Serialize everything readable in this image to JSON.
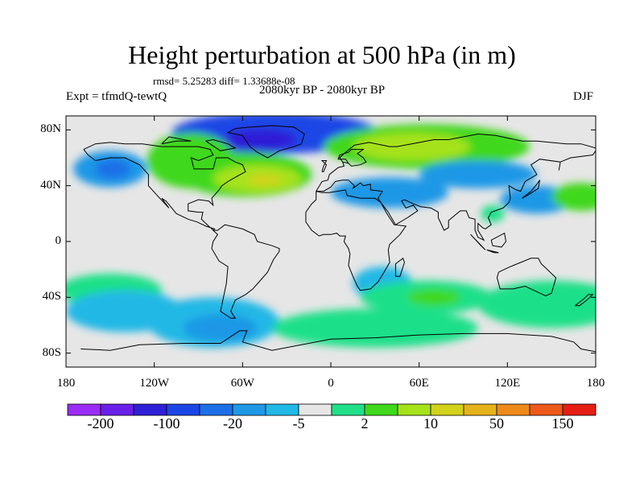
{
  "title": "Height perturbation at 500 hPa (in m)",
  "stats": "rmsd= 5.25283 diff= 1.33688e-08",
  "left_string": "Expt = tfmdQ-tewtQ",
  "center_string": "2080kyr BP - 2080kyr BP",
  "right_string": "DJF",
  "map": {
    "projection": "cylindrical-equidistant",
    "lon_range": [
      -180,
      180
    ],
    "lat_range": [
      -90,
      90
    ],
    "lat_labels": [
      "80N",
      "40N",
      "0",
      "40S",
      "80S"
    ],
    "lat_values": [
      80,
      40,
      0,
      -40,
      -80
    ],
    "lon_labels": [
      "180",
      "120W",
      "60W",
      "0",
      "60E",
      "120E",
      "180"
    ],
    "lon_values": [
      -180,
      -120,
      -60,
      0,
      60,
      120,
      180
    ]
  },
  "colorbar": {
    "colors": [
      "#9b2cf5",
      "#6a20e8",
      "#2f1fd7",
      "#1b46e6",
      "#1d6fe8",
      "#1f98e6",
      "#20b8e6",
      "#e6e6e6",
      "#1fe089",
      "#3fd81a",
      "#a6e21a",
      "#d2d21a",
      "#e6b21a",
      "#ee8a1a",
      "#ee5a1a",
      "#e61e14"
    ],
    "labels": [
      "-200",
      "-100",
      "-20",
      "-5",
      "2",
      "10",
      "50",
      "150"
    ],
    "label_boundary_index": [
      1,
      3,
      5,
      7,
      9,
      11,
      13,
      15
    ]
  },
  "anomaly_regions": [
    {
      "lon": -38,
      "lat": 78,
      "rx": 70,
      "ry": 15,
      "level": 3
    },
    {
      "lon": -48,
      "lat": 73,
      "rx": 25,
      "ry": 8,
      "level": 2
    },
    {
      "lon": -150,
      "lat": 52,
      "rx": 25,
      "ry": 13,
      "level": 5
    },
    {
      "lon": -148,
      "lat": 52,
      "rx": 12,
      "ry": 7,
      "level": 4
    },
    {
      "lon": -95,
      "lat": 58,
      "rx": 30,
      "ry": 20,
      "level": 9
    },
    {
      "lon": -58,
      "lat": 48,
      "rx": 45,
      "ry": 16,
      "level": 9
    },
    {
      "lon": -50,
      "lat": 45,
      "rx": 30,
      "ry": 10,
      "level": 10
    },
    {
      "lon": -45,
      "lat": 44,
      "rx": 12,
      "ry": 4,
      "level": 11
    },
    {
      "lon": 65,
      "lat": 68,
      "rx": 70,
      "ry": 16,
      "level": 9
    },
    {
      "lon": 55,
      "lat": 68,
      "rx": 40,
      "ry": 10,
      "level": 10
    },
    {
      "lon": 40,
      "lat": 35,
      "rx": 40,
      "ry": 11,
      "level": 5
    },
    {
      "lon": 100,
      "lat": 48,
      "rx": 40,
      "ry": 10,
      "level": 5
    },
    {
      "lon": 140,
      "lat": 30,
      "rx": 25,
      "ry": 10,
      "level": 5
    },
    {
      "lon": 170,
      "lat": 32,
      "rx": 20,
      "ry": 10,
      "level": 9
    },
    {
      "lon": 110,
      "lat": 20,
      "rx": 8,
      "ry": 6,
      "level": 8
    },
    {
      "lon": 35,
      "lat": -30,
      "rx": 20,
      "ry": 12,
      "level": 6
    },
    {
      "lon": 65,
      "lat": -40,
      "rx": 45,
      "ry": 12,
      "level": 8
    },
    {
      "lon": 70,
      "lat": -40,
      "rx": 18,
      "ry": 6,
      "level": 9
    },
    {
      "lon": 150,
      "lat": -45,
      "rx": 50,
      "ry": 17,
      "level": 8
    },
    {
      "lon": -150,
      "lat": -35,
      "rx": 35,
      "ry": 12,
      "level": 8
    },
    {
      "lon": -140,
      "lat": -50,
      "rx": 40,
      "ry": 15,
      "level": 6
    },
    {
      "lon": -80,
      "lat": -58,
      "rx": 45,
      "ry": 18,
      "level": 6
    },
    {
      "lon": -75,
      "lat": -62,
      "rx": 25,
      "ry": 10,
      "level": 5
    },
    {
      "lon": 30,
      "lat": -62,
      "rx": 70,
      "ry": 14,
      "level": 8
    }
  ],
  "coastlines": [
    [
      [
        -168,
        66
      ],
      [
        -160,
        70
      ],
      [
        -150,
        71
      ],
      [
        -140,
        70
      ],
      [
        -128,
        70
      ],
      [
        -115,
        68
      ],
      [
        -100,
        68
      ],
      [
        -90,
        68
      ],
      [
        -82,
        66
      ],
      [
        -80,
        62
      ],
      [
        -90,
        58
      ],
      [
        -95,
        60
      ],
      [
        -93,
        52
      ],
      [
        -80,
        52
      ],
      [
        -78,
        60
      ],
      [
        -70,
        60
      ],
      [
        -65,
        57
      ],
      [
        -60,
        55
      ],
      [
        -58,
        50
      ],
      [
        -65,
        46
      ],
      [
        -70,
        43
      ],
      [
        -74,
        40
      ],
      [
        -76,
        37
      ],
      [
        -81,
        31
      ],
      [
        -80,
        26
      ],
      [
        -83,
        29
      ],
      [
        -90,
        30
      ],
      [
        -97,
        27
      ],
      [
        -97,
        22
      ],
      [
        -90,
        21
      ],
      [
        -87,
        21
      ],
      [
        -88,
        16
      ],
      [
        -84,
        12
      ],
      [
        -80,
        8
      ],
      [
        -79,
        9
      ],
      [
        -85,
        11
      ],
      [
        -91,
        14
      ],
      [
        -97,
        16
      ],
      [
        -105,
        20
      ],
      [
        -112,
        29
      ],
      [
        -115,
        31
      ],
      [
        -110,
        24
      ],
      [
        -118,
        33
      ],
      [
        -124,
        40
      ],
      [
        -124,
        48
      ],
      [
        -130,
        55
      ],
      [
        -140,
        60
      ],
      [
        -150,
        60
      ],
      [
        -160,
        58
      ],
      [
        -165,
        62
      ],
      [
        -168,
        66
      ]
    ],
    [
      [
        -80,
        8
      ],
      [
        -77,
        5
      ],
      [
        -80,
        0
      ],
      [
        -81,
        -5
      ],
      [
        -76,
        -14
      ],
      [
        -70,
        -18
      ],
      [
        -71,
        -30
      ],
      [
        -73,
        -40
      ],
      [
        -75,
        -50
      ],
      [
        -68,
        -55
      ],
      [
        -65,
        -55
      ],
      [
        -68,
        -50
      ],
      [
        -65,
        -42
      ],
      [
        -58,
        -38
      ],
      [
        -53,
        -34
      ],
      [
        -48,
        -28
      ],
      [
        -43,
        -22
      ],
      [
        -39,
        -13
      ],
      [
        -35,
        -7
      ],
      [
        -35,
        -5
      ],
      [
        -40,
        -3
      ],
      [
        -50,
        0
      ],
      [
        -52,
        5
      ],
      [
        -60,
        9
      ],
      [
        -72,
        12
      ],
      [
        -77,
        8
      ],
      [
        -80,
        8
      ]
    ],
    [
      [
        -10,
        36
      ],
      [
        -6,
        43
      ],
      [
        -2,
        44
      ],
      [
        -1,
        48
      ],
      [
        5,
        53
      ],
      [
        9,
        54
      ],
      [
        8,
        57
      ],
      [
        12,
        56
      ],
      [
        14,
        54
      ],
      [
        20,
        55
      ],
      [
        24,
        57
      ],
      [
        22,
        60
      ],
      [
        18,
        63
      ],
      [
        22,
        66
      ],
      [
        14,
        66
      ],
      [
        12,
        64
      ],
      [
        6,
        62
      ],
      [
        5,
        59
      ],
      [
        10,
        59
      ],
      [
        12,
        56
      ],
      [
        8,
        57
      ],
      [
        6,
        60
      ],
      [
        10,
        64
      ],
      [
        16,
        69
      ],
      [
        26,
        71
      ],
      [
        40,
        68
      ],
      [
        45,
        68
      ],
      [
        55,
        70
      ],
      [
        70,
        73
      ],
      [
        80,
        73
      ],
      [
        100,
        77
      ],
      [
        112,
        76
      ],
      [
        130,
        72
      ],
      [
        140,
        72
      ],
      [
        160,
        70
      ],
      [
        170,
        70
      ],
      [
        180,
        67
      ],
      [
        180,
        65
      ],
      [
        178,
        62
      ],
      [
        163,
        60
      ],
      [
        156,
        57
      ],
      [
        155,
        51
      ],
      [
        156,
        57
      ],
      [
        142,
        59
      ],
      [
        136,
        55
      ],
      [
        140,
        48
      ],
      [
        132,
        43
      ],
      [
        129,
        36
      ],
      [
        126,
        37
      ],
      [
        121,
        40
      ],
      [
        122,
        31
      ],
      [
        121,
        28
      ],
      [
        117,
        24
      ],
      [
        109,
        21
      ],
      [
        107,
        17
      ],
      [
        109,
        12
      ],
      [
        105,
        9
      ],
      [
        103,
        10
      ],
      [
        100,
        13
      ],
      [
        100,
        8
      ],
      [
        104,
        1
      ],
      [
        100,
        3
      ],
      [
        98,
        8
      ],
      [
        98,
        16
      ],
      [
        94,
        17
      ],
      [
        92,
        22
      ],
      [
        88,
        22
      ],
      [
        80,
        15
      ],
      [
        80,
        10
      ],
      [
        77,
        8
      ],
      [
        73,
        17
      ],
      [
        73,
        21
      ],
      [
        68,
        24
      ],
      [
        61,
        25
      ],
      [
        56,
        27
      ],
      [
        50,
        30
      ],
      [
        48,
        29
      ],
      [
        51,
        24
      ],
      [
        56,
        26
      ],
      [
        59,
        22
      ],
      [
        52,
        17
      ],
      [
        44,
        12
      ],
      [
        39,
        21
      ],
      [
        34,
        28
      ],
      [
        32,
        31
      ],
      [
        35,
        36
      ],
      [
        27,
        37
      ],
      [
        27,
        41
      ],
      [
        22,
        40
      ],
      [
        20,
        42
      ],
      [
        15,
        38
      ],
      [
        16,
        40
      ],
      [
        12,
        44
      ],
      [
        8,
        44
      ],
      [
        3,
        43
      ],
      [
        0,
        39
      ],
      [
        -5,
        36
      ],
      [
        -10,
        36
      ]
    ],
    [
      [
        -10,
        36
      ],
      [
        -6,
        35
      ],
      [
        -1,
        35
      ],
      [
        10,
        37
      ],
      [
        11,
        33
      ],
      [
        20,
        31
      ],
      [
        30,
        31
      ],
      [
        34,
        28
      ],
      [
        38,
        20
      ],
      [
        43,
        12
      ],
      [
        51,
        11
      ],
      [
        47,
        5
      ],
      [
        40,
        -2
      ],
      [
        39,
        -6
      ],
      [
        40,
        -15
      ],
      [
        35,
        -24
      ],
      [
        32,
        -29
      ],
      [
        27,
        -34
      ],
      [
        20,
        -35
      ],
      [
        18,
        -32
      ],
      [
        15,
        -25
      ],
      [
        12,
        -17
      ],
      [
        13,
        -9
      ],
      [
        12,
        -5
      ],
      [
        9,
        0
      ],
      [
        10,
        4
      ],
      [
        6,
        4
      ],
      [
        4,
        6
      ],
      [
        0,
        5
      ],
      [
        -5,
        5
      ],
      [
        -8,
        4
      ],
      [
        -13,
        8
      ],
      [
        -17,
        14
      ],
      [
        -17,
        21
      ],
      [
        -13,
        27
      ],
      [
        -10,
        30
      ],
      [
        -10,
        36
      ]
    ],
    [
      [
        44,
        -25
      ],
      [
        47,
        -25
      ],
      [
        50,
        -15
      ],
      [
        49,
        -12
      ],
      [
        44,
        -16
      ],
      [
        44,
        -25
      ]
    ],
    [
      [
        114,
        -22
      ],
      [
        122,
        -18
      ],
      [
        129,
        -15
      ],
      [
        136,
        -12
      ],
      [
        141,
        -12
      ],
      [
        143,
        -16
      ],
      [
        146,
        -19
      ],
      [
        153,
        -26
      ],
      [
        150,
        -37
      ],
      [
        146,
        -39
      ],
      [
        138,
        -35
      ],
      [
        132,
        -32
      ],
      [
        124,
        -34
      ],
      [
        115,
        -34
      ],
      [
        113,
        -26
      ],
      [
        114,
        -22
      ]
    ],
    [
      [
        -55,
        82
      ],
      [
        -40,
        83
      ],
      [
        -25,
        82
      ],
      [
        -18,
        77
      ],
      [
        -20,
        70
      ],
      [
        -25,
        68
      ],
      [
        -35,
        65
      ],
      [
        -43,
        60
      ],
      [
        -50,
        64
      ],
      [
        -55,
        68
      ],
      [
        -60,
        76
      ],
      [
        -70,
        78
      ],
      [
        -65,
        81
      ],
      [
        -55,
        82
      ]
    ],
    [
      [
        -170,
        -77
      ],
      [
        -150,
        -78
      ],
      [
        -130,
        -74
      ],
      [
        -100,
        -73
      ],
      [
        -75,
        -73
      ],
      [
        -62,
        -64
      ],
      [
        -57,
        -64
      ],
      [
        -60,
        -72
      ],
      [
        -40,
        -78
      ],
      [
        -20,
        -74
      ],
      [
        0,
        -70
      ],
      [
        30,
        -69
      ],
      [
        60,
        -67
      ],
      [
        90,
        -66
      ],
      [
        120,
        -66
      ],
      [
        150,
        -68
      ],
      [
        165,
        -72
      ],
      [
        170,
        -77
      ],
      [
        180,
        -79
      ]
    ],
    [
      [
        -6,
        50
      ],
      [
        -5,
        54
      ],
      [
        -3,
        58
      ],
      [
        -6,
        58
      ],
      [
        -3,
        55
      ],
      [
        -5,
        50
      ],
      [
        -6,
        50
      ]
    ],
    [
      [
        130,
        31
      ],
      [
        135,
        34
      ],
      [
        141,
        38
      ],
      [
        142,
        44
      ],
      [
        140,
        41
      ],
      [
        136,
        36
      ],
      [
        130,
        31
      ]
    ],
    [
      [
        166,
        -46
      ],
      [
        172,
        -41
      ],
      [
        175,
        -38
      ],
      [
        178,
        -38
      ],
      [
        174,
        -42
      ],
      [
        169,
        -46
      ],
      [
        166,
        -46
      ]
    ],
    [
      [
        95,
        5
      ],
      [
        105,
        -6
      ],
      [
        102,
        -3
      ],
      [
        95,
        5
      ]
    ],
    [
      [
        109,
        1
      ],
      [
        118,
        6
      ],
      [
        119,
        0
      ],
      [
        116,
        -4
      ],
      [
        110,
        -3
      ],
      [
        109,
        1
      ]
    ],
    [
      [
        106,
        -6
      ],
      [
        114,
        -8
      ],
      [
        111,
        -8
      ],
      [
        106,
        -6
      ]
    ],
    [
      [
        -85,
        72
      ],
      [
        -80,
        73
      ],
      [
        -70,
        70
      ],
      [
        -65,
        67
      ],
      [
        -75,
        65
      ],
      [
        -85,
        72
      ]
    ],
    [
      [
        -115,
        70
      ],
      [
        -105,
        72
      ],
      [
        -95,
        72
      ],
      [
        -110,
        75
      ],
      [
        -115,
        70
      ]
    ]
  ]
}
